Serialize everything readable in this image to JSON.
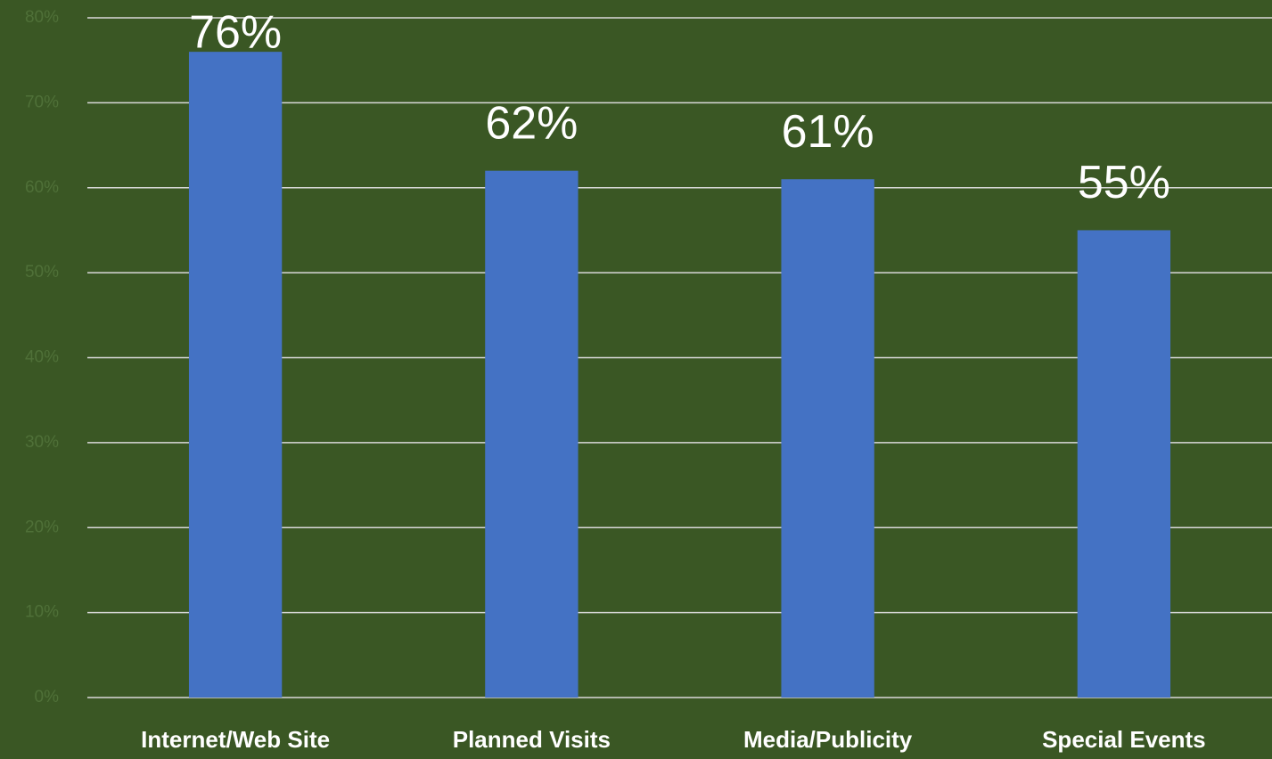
{
  "chart_data": {
    "type": "bar",
    "categories": [
      "Internet/Web Site",
      "Planned Visits",
      "Media/Publicity",
      "Special Events"
    ],
    "values": [
      76,
      62,
      61,
      55
    ],
    "value_labels": [
      "76%",
      "62%",
      "61%",
      "55%"
    ],
    "color": "#4472c4",
    "ylim": [
      0,
      80
    ],
    "yticks": [
      {
        "value": 0,
        "label": "0%"
      },
      {
        "value": 10,
        "label": "10%"
      },
      {
        "value": 20,
        "label": "20%"
      },
      {
        "value": 30,
        "label": "30%"
      },
      {
        "value": 40,
        "label": "40%"
      },
      {
        "value": 50,
        "label": "50%"
      },
      {
        "value": 60,
        "label": "60%"
      },
      {
        "value": 70,
        "label": "70%"
      },
      {
        "value": 80,
        "label": "80%"
      }
    ],
    "grid": true
  }
}
